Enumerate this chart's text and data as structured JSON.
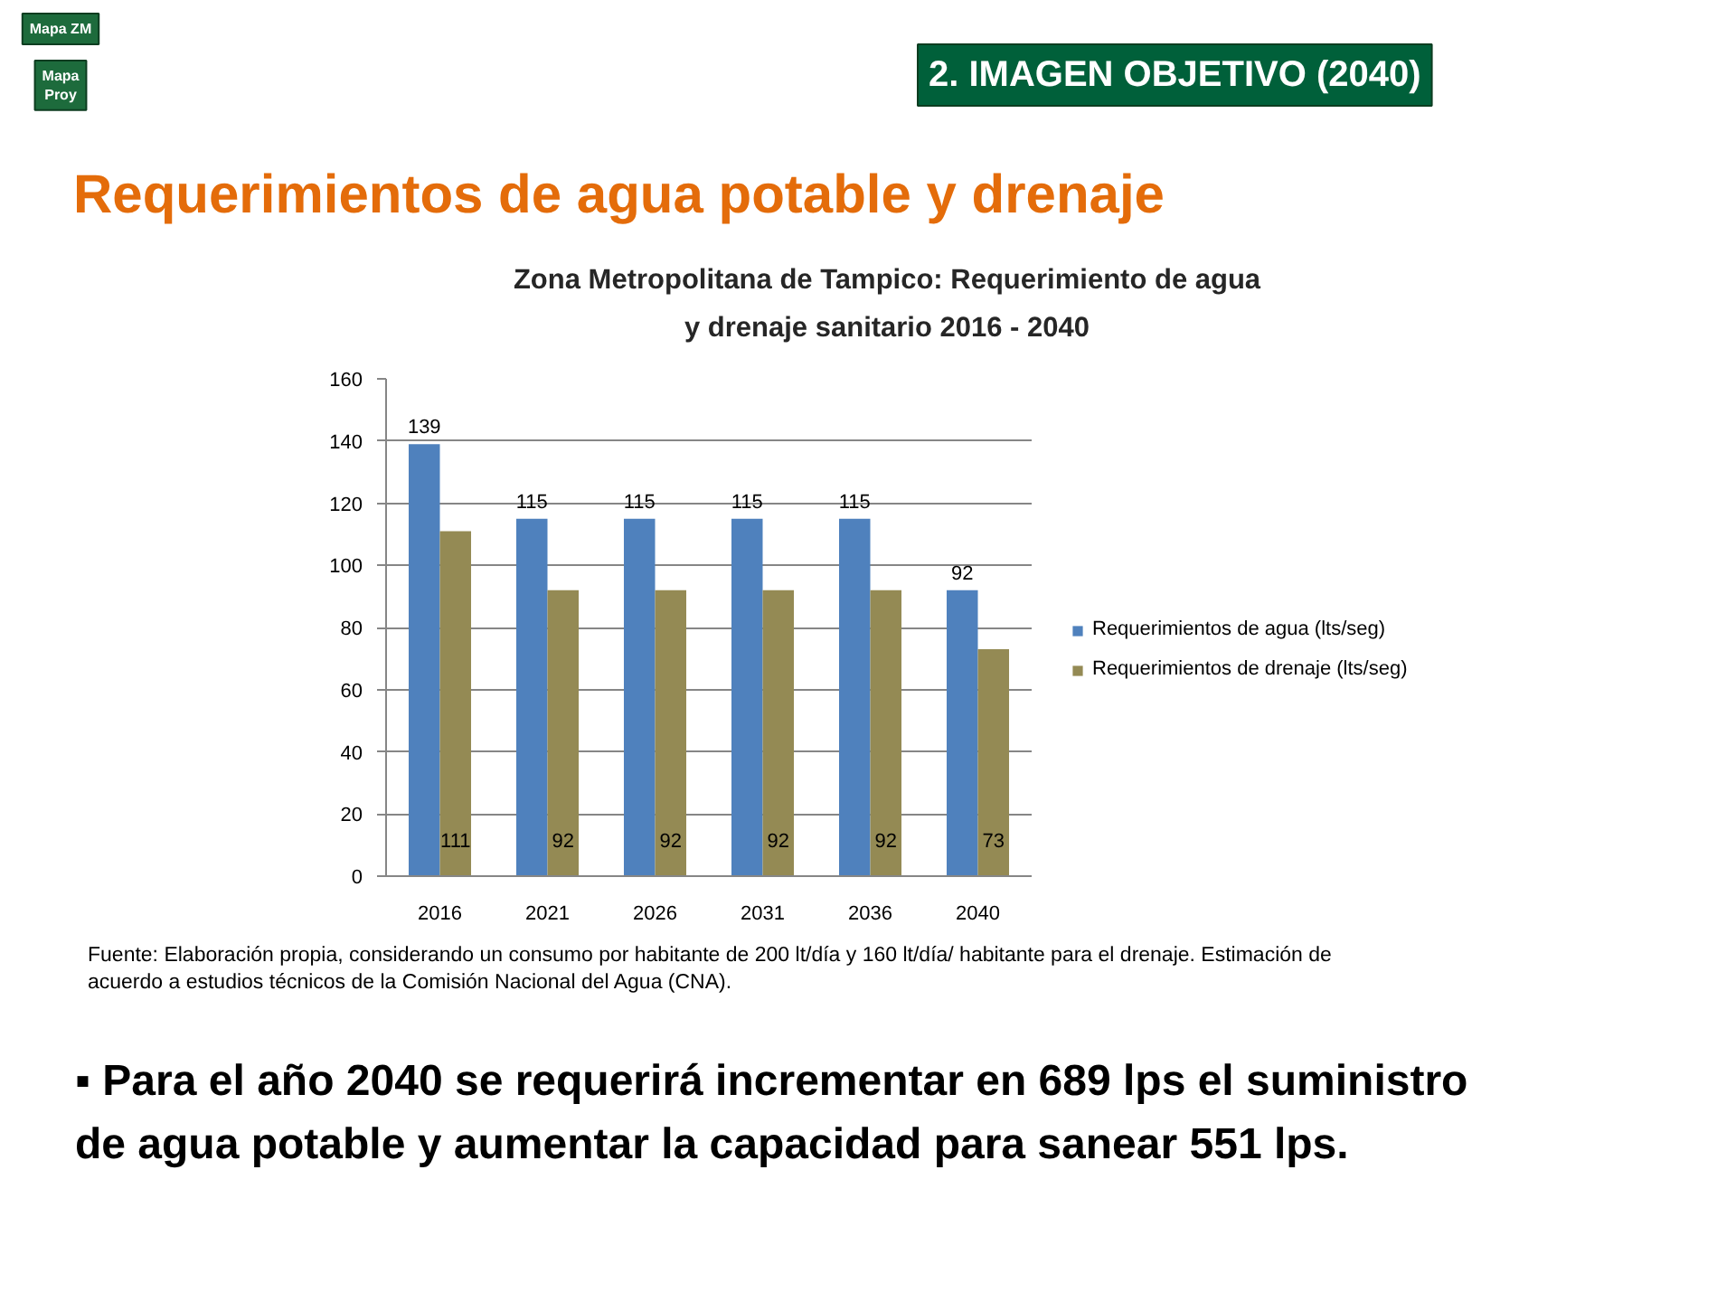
{
  "chart_data": {
    "type": "bar",
    "title": "Zona Metropolitana de Tampico: Requerimiento de agua y drenaje sanitario 2016 - 2040",
    "categories": [
      "2016",
      "2021",
      "2026",
      "2031",
      "2036",
      "2040"
    ],
    "series": [
      {
        "name": "Requerimientos de agua (lts/seg)",
        "color": "#4f81bd",
        "values": [
          139,
          115,
          115,
          115,
          115,
          92
        ]
      },
      {
        "name": "Requerimientos de drenaje (lts/seg)",
        "color": "#948a54",
        "values": [
          111,
          92,
          92,
          92,
          92,
          73
        ]
      }
    ],
    "ylim": [
      0,
      160
    ],
    "yticks": [
      0,
      20,
      40,
      60,
      80,
      100,
      120,
      140,
      160
    ],
    "grid": "y",
    "legend": "right",
    "data_labels": true,
    "annotations": [
      "Mapa ZM",
      "Mapa Proy",
      "2. IMAGEN OBJETIVO (2040)",
      "Requerimientos de agua potable y drenaje",
      "Fuente: Elaboración propia, considerando un consumo por habitante de 200 lt/día y 160 lt/día/ habitante para el drenaje. Estimación de acuerdo a estudios técnicos de la Comisión Nacional del Agua (CNA).",
      "▪ Para el año 2040 se requerirá incrementar en 689 lps el suministro de agua potable y aumentar la capacidad para sanear 551 lps."
    ]
  }
}
